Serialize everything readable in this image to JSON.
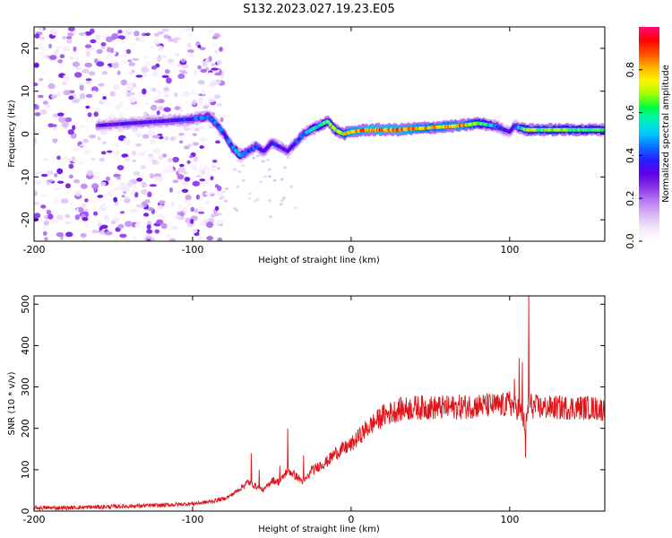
{
  "figure_title": "S132.2023.027.19.23.E05",
  "colors": {
    "snr_line": "#e0151a",
    "axis": "#000000",
    "colormap": [
      "#ffffff",
      "#f2e6fb",
      "#d9b6f5",
      "#b77cf0",
      "#8c33ea",
      "#5f00e6",
      "#2a1cff",
      "#0b6bff",
      "#00c8ff",
      "#00f0c0",
      "#00ff40",
      "#a4ff00",
      "#fff200",
      "#ffb000",
      "#ff5000",
      "#ff0000",
      "#ff0a78"
    ]
  },
  "chart_data": [
    {
      "id": "spectrogram",
      "type": "heatmap",
      "title": "",
      "xlabel": "Height of straight line (km)",
      "ylabel": "Frequency (Hz)",
      "xlim": [
        -200,
        160
      ],
      "ylim": [
        -25,
        25
      ],
      "xticks": [
        -200,
        -100,
        0,
        100
      ],
      "yticks": [
        -20,
        -10,
        0,
        10,
        20
      ],
      "grid": false,
      "ridge": {
        "x": [
          -160,
          -140,
          -120,
          -100,
          -90,
          -85,
          -80,
          -75,
          -70,
          -65,
          -60,
          -55,
          -50,
          -45,
          -40,
          -35,
          -30,
          -25,
          -20,
          -15,
          -10,
          -5,
          0,
          10,
          30,
          50,
          70,
          80,
          90,
          100,
          103,
          106,
          110,
          130,
          160
        ],
        "y": [
          2,
          2.5,
          3,
          3.5,
          4,
          2.5,
          0,
          -3,
          -5,
          -4,
          -3,
          -4,
          -2,
          -3,
          -4,
          -2,
          0,
          1,
          2,
          3,
          1,
          0,
          0.5,
          1,
          1,
          1.5,
          2,
          2.5,
          2,
          0.5,
          2,
          1.5,
          1,
          1,
          1
        ],
        "amplitude": [
          0.3,
          0.35,
          0.35,
          0.4,
          0.5,
          0.45,
          0.4,
          0.5,
          0.55,
          0.4,
          0.45,
          0.35,
          0.4,
          0.35,
          0.35,
          0.4,
          0.45,
          0.55,
          0.6,
          0.65,
          0.7,
          0.75,
          0.85,
          0.9,
          0.9,
          0.8,
          0.85,
          0.7,
          0.5,
          0.3,
          0.35,
          0.5,
          0.7,
          0.7,
          0.6
        ]
      },
      "noise_region_x": [
        -200,
        -85
      ],
      "colorbar": {
        "label": "Normalized spectral amplitude",
        "range": [
          0,
          1
        ],
        "ticks": [
          0.0,
          0.2,
          0.4,
          0.6,
          0.8
        ]
      }
    },
    {
      "id": "snr",
      "type": "line",
      "title": "",
      "xlabel": "Height of straight line (km)",
      "ylabel": "SNR (10 * v/v)",
      "xlim": [
        -200,
        160
      ],
      "ylim": [
        0,
        520
      ],
      "xticks": [
        -200,
        -100,
        0,
        100
      ],
      "yticks": [
        0,
        100,
        200,
        300,
        400,
        500
      ],
      "grid": false,
      "series": [
        {
          "x": [
            -200,
            -180,
            -160,
            -140,
            -120,
            -100,
            -90,
            -80,
            -75,
            -70,
            -65,
            -60,
            -55,
            -50,
            -45,
            -40,
            -35,
            -30,
            -25,
            -20,
            -15,
            -10,
            -5,
            0,
            10,
            20,
            30,
            40,
            50,
            60,
            70,
            80,
            90,
            95,
            100,
            105,
            108,
            110,
            112,
            115,
            120,
            130,
            140,
            150,
            160
          ],
          "y": [
            8,
            8,
            10,
            12,
            14,
            18,
            22,
            30,
            40,
            55,
            70,
            60,
            50,
            75,
            70,
            100,
            85,
            70,
            95,
            110,
            120,
            140,
            150,
            160,
            200,
            230,
            245,
            250,
            250,
            250,
            252,
            255,
            255,
            255,
            258,
            250,
            230,
            200,
            260,
            252,
            250,
            250,
            250,
            250,
            245
          ],
          "spikes": {
            "x": [
              -63,
              -58,
              -45,
              -40,
              -30,
              -25,
              100,
              103,
              106,
              108,
              110,
              112
            ],
            "y": [
              140,
              100,
              110,
              200,
              135,
              110,
              290,
              320,
              370,
              360,
              130,
              520
            ]
          }
        }
      ]
    }
  ]
}
